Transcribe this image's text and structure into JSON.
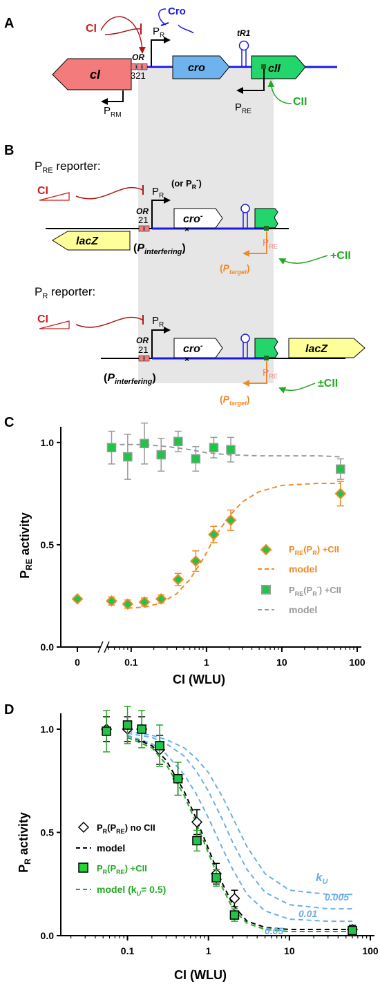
{
  "panels": {
    "a": "A",
    "b": "B",
    "c": "C",
    "d": "D"
  },
  "panelA": {
    "ci": "CI",
    "cro_reg": "Cro",
    "pr": "P",
    "pr_sub": "R",
    "or": "OR",
    "or_sites": "321",
    "tr1": "tR1",
    "cro_gene": "cro",
    "cii_gene": "cII",
    "ci_gene": "cI",
    "prm": "P",
    "prm_sub": "RM",
    "pre": "P",
    "pre_sub": "RE",
    "cii_reg": "CII"
  },
  "panelB": {
    "pre_reporter": "P",
    "pre_reporter_sub": "RE",
    "pre_reporter_suffix": " reporter:",
    "pr_reporter": "P",
    "pr_reporter_sub": "R",
    "pr_reporter_suffix": " reporter:",
    "ci": "CI",
    "pr": "P",
    "pr_sub": "R",
    "or_pr_minus_open": "(or P",
    "or_pr_minus_sub": "R",
    "or_pr_minus_sup": "-",
    "or_pr_minus_close": ")",
    "or": "OR",
    "or_sites": "21",
    "cro_minus": "cro",
    "cro_minus_sup": "-",
    "lacz": "lacZ",
    "p_interfering": "P",
    "p_interfering_sub": "interfering",
    "p_target": "P",
    "p_target_sub": "target",
    "pre": "P",
    "pre_sub": "RE",
    "plus_cii": "+CII",
    "pm_cii": "±CII"
  },
  "colors": {
    "blue": "#1a1ae6",
    "red": "#cc1f1f",
    "green": "#22a822",
    "orange": "#f08a24",
    "gray": "#999999",
    "light_blue": "#6aaee6",
    "cro_fill": "#6fb3ee",
    "cii_fill": "#23d66b",
    "ci_fill": "#f47b7b",
    "lacz_fill": "#ffff99",
    "shade": "#e6e6e6",
    "or_box": "#f08080"
  },
  "chart_data": [
    {
      "type": "scatter",
      "panel": "C",
      "ylabel": "P_RE activity",
      "xlabel": "CI (WLU)",
      "x_scale": "log (broken axis at 0)",
      "xlim": [
        0.05,
        100
      ],
      "ylim": [
        0,
        1.05
      ],
      "xticks": [
        "0",
        "0.1",
        "1",
        "10",
        "100"
      ],
      "yticks": [
        "0.0",
        "0.5",
        "1.0"
      ],
      "series": [
        {
          "name": "P_RE(P_R) +CII",
          "marker": "diamond",
          "color": "#f08a24",
          "x": [
            0,
            0.055,
            0.09,
            0.15,
            0.25,
            0.42,
            0.72,
            1.25,
            2.1,
            60
          ],
          "y": [
            0.235,
            0.225,
            0.21,
            0.22,
            0.235,
            0.33,
            0.42,
            0.55,
            0.62,
            0.75
          ],
          "err": [
            0,
            0.02,
            0.02,
            0.02,
            0.02,
            0.03,
            0.05,
            0.04,
            0.05,
            0.06
          ]
        },
        {
          "name": "P_RE(P_R-) +CII",
          "marker": "square",
          "color": "#999999",
          "x": [
            0.055,
            0.09,
            0.15,
            0.25,
            0.42,
            0.72,
            1.25,
            2.1,
            60
          ],
          "y": [
            0.975,
            0.93,
            0.995,
            0.94,
            1.005,
            0.92,
            0.975,
            0.965,
            0.87
          ],
          "err": [
            0.08,
            0.11,
            0.1,
            0.08,
            0.05,
            0.06,
            0.05,
            0.06,
            0.05
          ]
        },
        {
          "name": "model",
          "line": "dashed",
          "color": "#f08a24",
          "x": [
            0.09,
            0.15,
            0.25,
            0.4,
            0.6,
            0.9,
            1.3,
            2,
            3,
            5,
            10,
            30,
            60
          ],
          "y": [
            0.19,
            0.195,
            0.215,
            0.26,
            0.33,
            0.43,
            0.54,
            0.64,
            0.71,
            0.76,
            0.79,
            0.8,
            0.8
          ]
        },
        {
          "name": "model",
          "line": "dashed",
          "color": "#999999",
          "x": [
            0.055,
            0.15,
            0.3,
            0.6,
            1,
            2,
            5,
            10,
            30,
            60
          ],
          "y": [
            0.99,
            0.99,
            0.98,
            0.965,
            0.95,
            0.94,
            0.935,
            0.935,
            0.935,
            0.93
          ]
        }
      ]
    },
    {
      "type": "scatter",
      "panel": "D",
      "ylabel": "P_R activity",
      "xlabel": "CI (WLU)",
      "x_scale": "log",
      "xlim": [
        0.015,
        100
      ],
      "ylim": [
        0,
        1.05
      ],
      "xticks": [
        "0.1",
        "1",
        "10",
        "100"
      ],
      "yticks": [
        "0.0",
        "0.5",
        "1.0"
      ],
      "series": [
        {
          "name": "P_R(P_RE) no CII",
          "marker": "open-diamond",
          "color": "#000000",
          "x": [
            0.055,
            0.1,
            0.15,
            0.25,
            0.42,
            0.72,
            1.25,
            2.1,
            60
          ],
          "y": [
            1.0,
            1.0,
            1.0,
            0.9,
            0.76,
            0.55,
            0.3,
            0.18,
            0.03
          ],
          "err": [
            0.06,
            0.06,
            0.06,
            0.07,
            0.08,
            0.06,
            0.05,
            0.04,
            0.02
          ]
        },
        {
          "name": "P_R(P_RE) +CII",
          "marker": "square",
          "color": "#22a822",
          "x": [
            0.055,
            0.1,
            0.15,
            0.25,
            0.42,
            0.72,
            1.25,
            2.1,
            60
          ],
          "y": [
            0.99,
            1.02,
            1.0,
            0.92,
            0.76,
            0.46,
            0.28,
            0.1,
            0.025
          ],
          "err": [
            0.1,
            0.09,
            0.09,
            0.1,
            0.08,
            0.05,
            0.04,
            0.03,
            0.02
          ]
        },
        {
          "name": "model",
          "line": "dashed",
          "color": "#000000",
          "x": [
            0.1,
            0.2,
            0.3,
            0.5,
            0.7,
            1,
            1.5,
            2,
            3,
            5,
            10,
            30,
            60
          ],
          "y": [
            0.97,
            0.92,
            0.85,
            0.7,
            0.57,
            0.42,
            0.25,
            0.15,
            0.07,
            0.04,
            0.03,
            0.03,
            0.03
          ]
        },
        {
          "name": "model (k_U = 0.5)",
          "line": "dashed",
          "color": "#22a822",
          "x": [
            0.1,
            0.2,
            0.3,
            0.5,
            0.7,
            1,
            1.5,
            2,
            3,
            5,
            10,
            30,
            60
          ],
          "y": [
            0.96,
            0.91,
            0.83,
            0.68,
            0.55,
            0.4,
            0.23,
            0.13,
            0.06,
            0.03,
            0.02,
            0.02,
            0.02
          ]
        },
        {
          "name": "0.05",
          "line": "dashed",
          "color": "#6aaee6",
          "x": [
            0.1,
            0.2,
            0.3,
            0.5,
            0.7,
            1,
            1.5,
            2,
            3,
            5,
            10,
            30,
            60
          ],
          "y": [
            0.97,
            0.93,
            0.88,
            0.78,
            0.69,
            0.57,
            0.42,
            0.32,
            0.2,
            0.12,
            0.08,
            0.07,
            0.07
          ]
        },
        {
          "name": "0.01",
          "line": "dashed",
          "color": "#6aaee6",
          "x": [
            0.1,
            0.2,
            0.3,
            0.5,
            0.7,
            1,
            1.5,
            2,
            3,
            5,
            10,
            30,
            60
          ],
          "y": [
            0.98,
            0.96,
            0.93,
            0.87,
            0.8,
            0.7,
            0.56,
            0.45,
            0.32,
            0.21,
            0.15,
            0.13,
            0.13
          ]
        },
        {
          "name": "0.005",
          "line": "dashed",
          "color": "#6aaee6",
          "x": [
            0.1,
            0.2,
            0.3,
            0.5,
            0.7,
            1,
            1.5,
            2,
            3,
            5,
            10,
            30,
            60
          ],
          "y": [
            0.99,
            0.97,
            0.95,
            0.91,
            0.86,
            0.79,
            0.67,
            0.57,
            0.43,
            0.3,
            0.22,
            0.2,
            0.2
          ]
        }
      ],
      "legend": {
        "no_cii": "P_R(P_RE) no CII",
        "model": "model",
        "plus_cii": "P_R(P_RE) +CII",
        "model_ku": "model (k_U = 0.5)"
      },
      "annotations": {
        "ku": "k",
        "ku_sub": "U",
        "k005": "0.005",
        "k01": "0.01",
        "k05": "0.05"
      }
    }
  ],
  "legendC": {
    "s1": "P",
    "s1_sub": "RE",
    "s1_mid": "(P",
    "s1_sub2": "R",
    "s1_end": ") +CII",
    "m1": "model",
    "s2": "P",
    "s2_sub": "RE",
    "s2_mid": "(P",
    "s2_sub2": "R",
    "s2_sup": "-",
    "s2_end": ") +CII",
    "m2": "model"
  },
  "legendD": {
    "a": "P",
    "a_sub": "R",
    "a_mid": "(P",
    "a_sub2": "RE",
    "a_end": ") no CII",
    "b": "model",
    "c": "P",
    "c_sub": "R",
    "c_mid": "(P",
    "c_sub2": "RE",
    "c_end": ") +CII",
    "d1": "model (k",
    "d_sub": "U",
    "d2": "= 0.5)"
  },
  "axes": {
    "c_ylabel": "P",
    "c_ylabel_sub": "RE",
    "c_ylabel_end": " activity",
    "c_xlabel": "CI (WLU)",
    "d_ylabel": "P",
    "d_ylabel_sub": "R",
    "d_ylabel_end": " activity",
    "d_xlabel": "CI (WLU)"
  }
}
